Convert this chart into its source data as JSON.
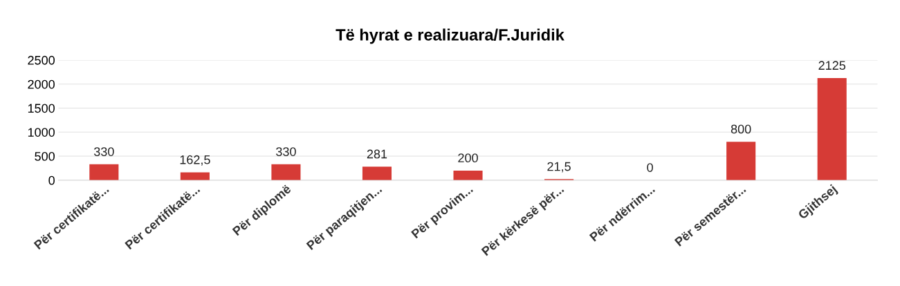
{
  "chart_data": {
    "type": "bar",
    "title": "Të hyrat e realizuara/F.Juridik",
    "categories": [
      "Për certifikatë...",
      "Për certifikatë...",
      "Për diplomë",
      "Për paraqitjen...",
      "Për provim...",
      "Për kërkesë për...",
      "Për ndërrim...",
      "Për semestër...",
      "Gjithsej"
    ],
    "values": [
      330,
      162.5,
      330,
      281,
      200,
      21.5,
      0,
      800,
      2125
    ],
    "value_labels": [
      "330",
      "162,5",
      "330",
      "281",
      "200",
      "21,5",
      "0",
      "800",
      "2125"
    ],
    "color": "#d63b36",
    "ylim": [
      0,
      2500
    ],
    "yticks": [
      0,
      500,
      1000,
      1500,
      2000,
      2500
    ],
    "grid": "y"
  }
}
